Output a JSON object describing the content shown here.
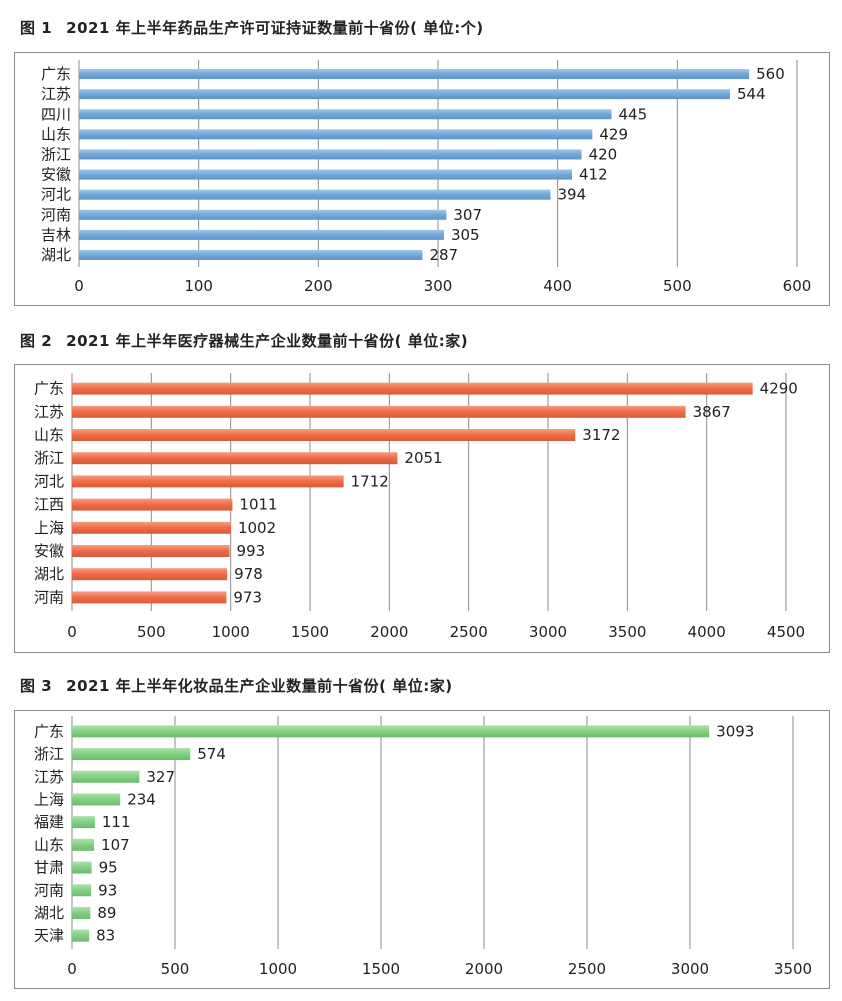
{
  "charts": [
    {
      "title_prefix": "图 1",
      "title": "2021 年上半年药品生产许可证持证数量前十省份( 单位:个)",
      "chart_data": {
        "type": "bar",
        "orientation": "horizontal",
        "categories": [
          "广东",
          "江苏",
          "四川",
          "山东",
          "浙江",
          "安徽",
          "河北",
          "河南",
          "吉林",
          "湖北"
        ],
        "values": [
          560,
          544,
          445,
          429,
          420,
          412,
          394,
          307,
          305,
          287
        ],
        "xlim": [
          0,
          600
        ],
        "xticks": [
          0,
          100,
          200,
          300,
          400,
          500,
          600
        ],
        "grid": true,
        "color": "#6fa8dc",
        "title": "2021 年上半年药品生产许可证持证数量前十省份( 单位:个)"
      }
    },
    {
      "title_prefix": "图 2",
      "title": "2021 年上半年医疗器械生产企业数量前十省份( 单位:家)",
      "chart_data": {
        "type": "bar",
        "orientation": "horizontal",
        "categories": [
          "广东",
          "江苏",
          "山东",
          "浙江",
          "河北",
          "江西",
          "上海",
          "安徽",
          "湖北",
          "河南"
        ],
        "values": [
          4290,
          3867,
          3172,
          2051,
          1712,
          1011,
          1002,
          993,
          978,
          973
        ],
        "xlim": [
          0,
          4500
        ],
        "xticks": [
          0,
          500,
          1000,
          1500,
          2000,
          2500,
          3000,
          3500,
          4000,
          4500
        ],
        "grid": true,
        "color": "#f06a44",
        "title": "2021 年上半年医疗器械生产企业数量前十省份( 单位:家)"
      }
    },
    {
      "title_prefix": "图 3",
      "title": "2021 年上半年化妆品生产企业数量前十省份( 单位:家)",
      "chart_data": {
        "type": "bar",
        "orientation": "horizontal",
        "categories": [
          "广东",
          "浙江",
          "江苏",
          "上海",
          "福建",
          "山东",
          "甘肃",
          "河南",
          "湖北",
          "天津"
        ],
        "values": [
          3093,
          574,
          327,
          234,
          111,
          107,
          95,
          93,
          89,
          83
        ],
        "xlim": [
          0,
          3500
        ],
        "xticks": [
          0,
          500,
          1000,
          1500,
          2000,
          2500,
          3000,
          3500
        ],
        "grid": true,
        "color": "#7fd17f",
        "title": "2021 年上半年化妆品生产企业数量前十省份( 单位:家)"
      }
    }
  ]
}
